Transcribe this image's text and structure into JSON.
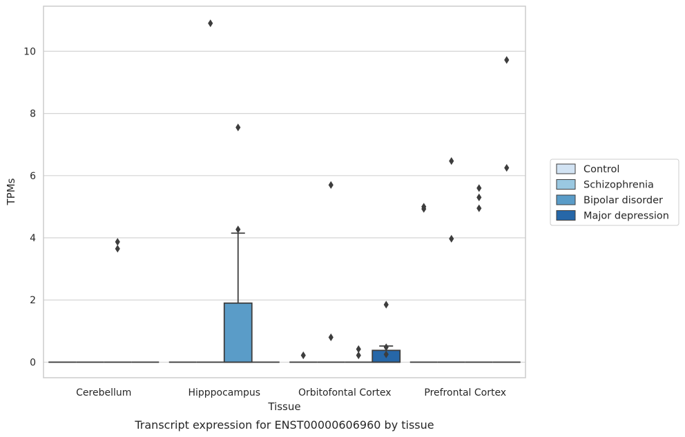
{
  "chart_data": {
    "type": "boxplot",
    "title": "",
    "caption": "Transcript expression for ENST00000606960 by tissue",
    "xlabel": "Tissue",
    "ylabel": "TPMs",
    "ylim": [
      -0.5,
      11.45
    ],
    "yticks": [
      0,
      2,
      4,
      6,
      8,
      10
    ],
    "grid": "horizontal",
    "legend_placement": "right",
    "categories": [
      "Cerebellum",
      "Hipppocampus",
      "Orbitofontal Cortex",
      "Prefrontal Cortex"
    ],
    "series": [
      {
        "name": "Control",
        "color": "#d2e3f3"
      },
      {
        "name": "Schizophrenia",
        "color": "#9ac8e1"
      },
      {
        "name": "Bipolar disorder",
        "color": "#5a9cc8"
      },
      {
        "name": "Major depression",
        "color": "#2667a8"
      }
    ],
    "boxes": [
      {
        "category": 0,
        "series": 0,
        "q1": 0,
        "median": 0,
        "q3": 0,
        "whisker_low": 0,
        "whisker_high": 0,
        "outliers": []
      },
      {
        "category": 0,
        "series": 1,
        "q1": 0,
        "median": 0,
        "q3": 0,
        "whisker_low": 0,
        "whisker_high": 0,
        "outliers": []
      },
      {
        "category": 0,
        "series": 2,
        "q1": 0,
        "median": 0,
        "q3": 0,
        "whisker_low": 0,
        "whisker_high": 0,
        "outliers": [
          3.65,
          3.87
        ]
      },
      {
        "category": 0,
        "series": 3,
        "q1": 0,
        "median": 0,
        "q3": 0,
        "whisker_low": 0,
        "whisker_high": 0,
        "outliers": []
      },
      {
        "category": 1,
        "series": 0,
        "q1": 0,
        "median": 0,
        "q3": 0,
        "whisker_low": 0,
        "whisker_high": 0,
        "outliers": []
      },
      {
        "category": 1,
        "series": 1,
        "q1": 0,
        "median": 0,
        "q3": 0,
        "whisker_low": 0,
        "whisker_high": 0,
        "outliers": [
          10.9
        ]
      },
      {
        "category": 1,
        "series": 2,
        "q1": 0,
        "median": 0,
        "q3": 1.9,
        "whisker_low": 0,
        "whisker_high": 4.15,
        "outliers": [
          7.55,
          4.27
        ]
      },
      {
        "category": 1,
        "series": 3,
        "q1": 0,
        "median": 0,
        "q3": 0,
        "whisker_low": 0,
        "whisker_high": 0,
        "outliers": []
      },
      {
        "category": 2,
        "series": 0,
        "q1": 0,
        "median": 0,
        "q3": 0,
        "whisker_low": 0,
        "whisker_high": 0,
        "outliers": [
          0.22
        ]
      },
      {
        "category": 2,
        "series": 1,
        "q1": 0,
        "median": 0,
        "q3": 0,
        "whisker_low": 0,
        "whisker_high": 0,
        "outliers": [
          5.7,
          0.8
        ]
      },
      {
        "category": 2,
        "series": 2,
        "q1": 0,
        "median": 0,
        "q3": 0,
        "whisker_low": 0,
        "whisker_high": 0,
        "outliers": [
          0.42,
          0.22
        ]
      },
      {
        "category": 2,
        "series": 3,
        "q1": 0,
        "median": 0,
        "q3": 0.38,
        "whisker_low": 0,
        "whisker_high": 0.52,
        "outliers": [
          1.85,
          0.48,
          0.25
        ]
      },
      {
        "category": 3,
        "series": 0,
        "q1": 0,
        "median": 0,
        "q3": 0,
        "whisker_low": 0,
        "whisker_high": 0,
        "outliers": [
          5.0,
          4.93
        ]
      },
      {
        "category": 3,
        "series": 1,
        "q1": 0,
        "median": 0,
        "q3": 0,
        "whisker_low": 0,
        "whisker_high": 0,
        "outliers": [
          6.47,
          3.97
        ]
      },
      {
        "category": 3,
        "series": 2,
        "q1": 0,
        "median": 0,
        "q3": 0,
        "whisker_low": 0,
        "whisker_high": 0,
        "outliers": [
          5.6,
          5.3,
          4.95
        ]
      },
      {
        "category": 3,
        "series": 3,
        "q1": 0,
        "median": 0,
        "q3": 0,
        "whisker_low": 0,
        "whisker_high": 0,
        "outliers": [
          9.72,
          6.25
        ]
      }
    ]
  }
}
